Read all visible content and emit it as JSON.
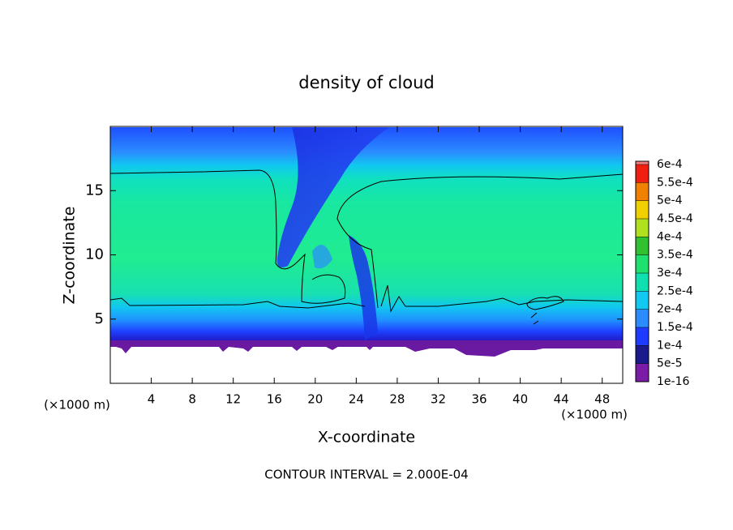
{
  "chart_data": {
    "type": "contour",
    "title": "density of cloud",
    "x_label": "X-coordinate",
    "y_label": "Z-coordinate",
    "x_unit_label": "(×1000 m)",
    "note": "CONTOUR INTERVAL = 2.000E-04",
    "xlim": [
      0,
      50
    ],
    "xticks": [
      4,
      8,
      12,
      16,
      20,
      24,
      28,
      32,
      36,
      40,
      44,
      48
    ],
    "ylim": [
      0,
      20
    ],
    "yticks": [
      5,
      10,
      15
    ],
    "colorbar": {
      "ticks": [
        {
          "value": 1e-16,
          "label": "1e-16"
        },
        {
          "value": 5e-05,
          "label": "5e-5"
        },
        {
          "value": 0.0001,
          "label": "1e-4"
        },
        {
          "value": 0.00015,
          "label": "1.5e-4"
        },
        {
          "value": 0.0002,
          "label": "2e-4"
        },
        {
          "value": 0.00025,
          "label": "2.5e-4"
        },
        {
          "value": 0.0003,
          "label": "3e-4"
        },
        {
          "value": 0.00035,
          "label": "3.5e-4"
        },
        {
          "value": 0.0004,
          "label": "4e-4"
        },
        {
          "value": 0.00045,
          "label": "4.5e-4"
        },
        {
          "value": 0.0005,
          "label": "5e-4"
        },
        {
          "value": 0.00055,
          "label": "5.5e-4"
        },
        {
          "value": 0.0006,
          "label": "6e-4"
        }
      ],
      "colors": [
        "#7a1ca6",
        "#1a1a8c",
        "#1e3cff",
        "#2a8cff",
        "#10c8f0",
        "#10e0b0",
        "#20e070",
        "#30c030",
        "#b0e020",
        "#f0d000",
        "#f08000",
        "#f02010",
        "#f08080"
      ]
    }
  }
}
